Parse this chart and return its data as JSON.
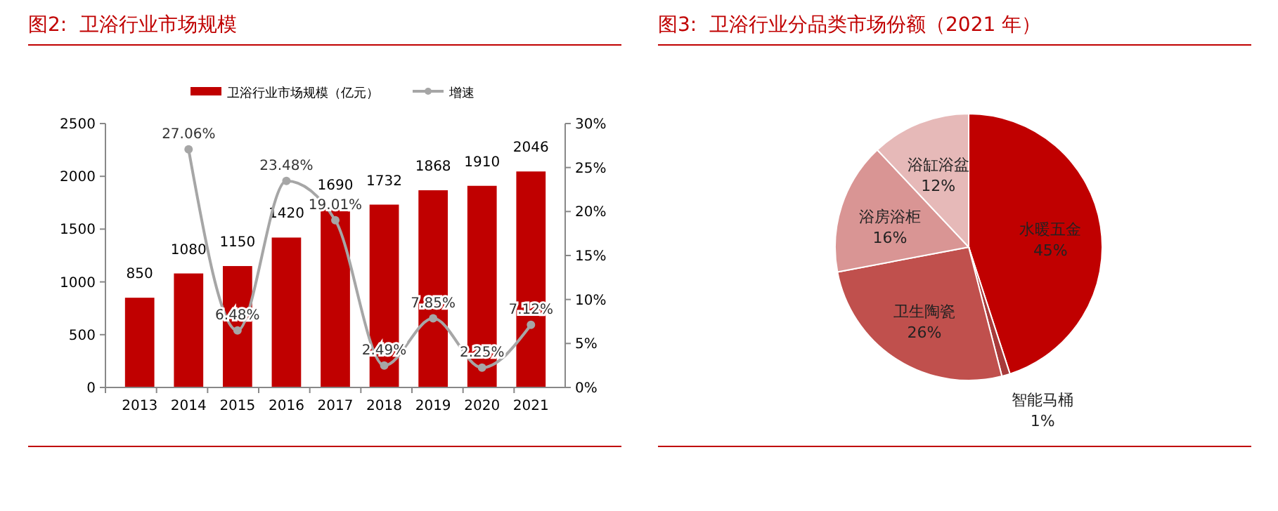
{
  "chart_data": [
    {
      "type": "bar",
      "title": "图2:  卫浴行业市场规模",
      "categories": [
        "2013",
        "2014",
        "2015",
        "2016",
        "2017",
        "2018",
        "2019",
        "2020",
        "2021"
      ],
      "series": [
        {
          "name": "卫浴行业市场规模（亿元）",
          "type": "bar",
          "color": "#c00000",
          "values": [
            850,
            1080,
            1150,
            1420,
            1690,
            1732,
            1868,
            1910,
            2046
          ],
          "value_labels": [
            "850",
            "1080",
            "1150",
            "1420",
            "1690",
            "1732",
            "1868",
            "1910",
            "2046"
          ]
        },
        {
          "name": "增速",
          "type": "line",
          "axis": "y2",
          "color": "#a6a6a6",
          "values": [
            null,
            27.06,
            6.48,
            23.48,
            19.01,
            2.49,
            7.85,
            2.25,
            7.12
          ],
          "value_labels": [
            null,
            "27.06%",
            "6.48%",
            "23.48%",
            "19.01%",
            "2.49%",
            "7.85%",
            "2.25%",
            "7.12%"
          ]
        }
      ],
      "ylim": [
        0,
        2500
      ],
      "yticks": [
        0,
        500,
        1000,
        1500,
        2000,
        2500
      ],
      "y2lim": [
        0,
        30
      ],
      "y2ticks": [
        {
          "value": 0,
          "label": "0%"
        },
        {
          "value": 5,
          "label": "5%"
        },
        {
          "value": 10,
          "label": "10%"
        },
        {
          "value": 15,
          "label": "15%"
        },
        {
          "value": 20,
          "label": "20%"
        },
        {
          "value": 25,
          "label": "25%"
        },
        {
          "value": 30,
          "label": "30%"
        }
      ],
      "legend": "top",
      "marker": "circle",
      "line_style": "solid",
      "grid": false
    },
    {
      "type": "pie",
      "title": "图3:  卫浴行业分品类市场份额（2021 年）",
      "categories": [
        "水暖五金",
        "智能马桶",
        "卫生陶瓷",
        "浴房浴柜",
        "浴缸浴盆"
      ],
      "values": [
        45,
        1,
        26,
        16,
        12
      ],
      "colors": [
        "#c00000",
        "#a83a3a",
        "#c0504d",
        "#d99594",
        "#e6b9b8"
      ],
      "value_labels": [
        "45%",
        "1%",
        "26%",
        "16%",
        "12%"
      ]
    }
  ]
}
